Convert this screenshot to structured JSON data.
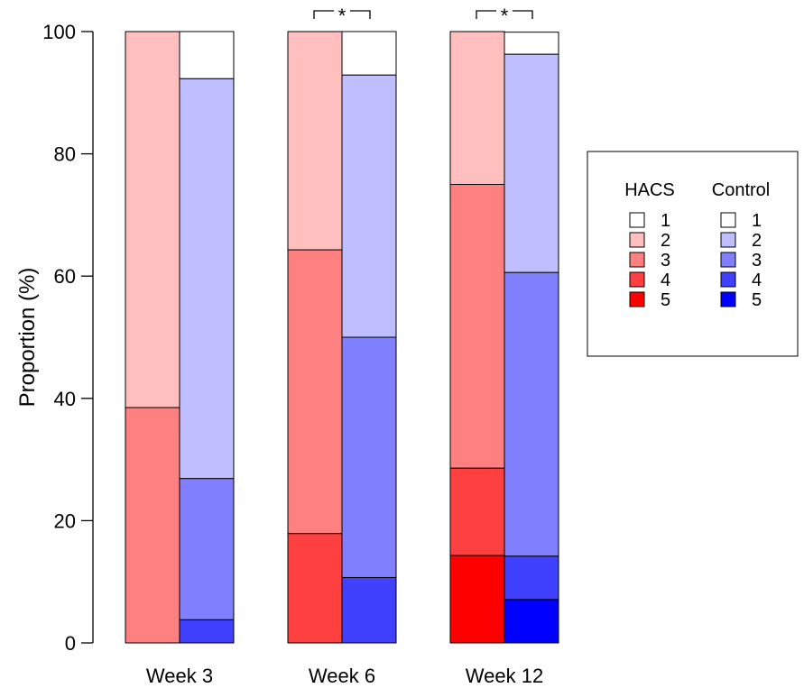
{
  "chart_data": {
    "type": "bar",
    "stacked": true,
    "title": "",
    "xlabel": "",
    "ylabel": "Proportion (%)",
    "ylim": [
      0,
      100
    ],
    "yticks": [
      0,
      20,
      40,
      60,
      80,
      100
    ],
    "categories": [
      "Week 3",
      "Week 6",
      "Week 12"
    ],
    "levels": [
      "1",
      "2",
      "3",
      "4",
      "5"
    ],
    "groups": [
      {
        "name": "HACS",
        "colors": [
          "#FFFFFF",
          "#FFBFBF",
          "#FF8080",
          "#FF4040",
          "#FF0000"
        ],
        "values": {
          "Week 3": {
            "1": 0,
            "2": 61.5,
            "3": 38.5,
            "4": 0,
            "5": 0
          },
          "Week 6": {
            "1": 0,
            "2": 35.7,
            "3": 46.4,
            "4": 17.9,
            "5": 0
          },
          "Week 12": {
            "1": 0,
            "2": 25.0,
            "3": 46.4,
            "4": 14.3,
            "5": 14.3
          }
        }
      },
      {
        "name": "Control",
        "colors": [
          "#FFFFFF",
          "#BFBFFF",
          "#8080FF",
          "#4040FF",
          "#0000FF"
        ],
        "values": {
          "Week 3": {
            "1": 7.7,
            "2": 65.4,
            "3": 23.1,
            "4": 3.8,
            "5": 0
          },
          "Week 6": {
            "1": 7.1,
            "2": 42.9,
            "3": 39.3,
            "4": 10.7,
            "5": 0
          },
          "Week 12": {
            "1": 3.6,
            "2": 35.7,
            "3": 46.4,
            "4": 7.1,
            "5": 7.1
          }
        }
      }
    ],
    "significance": [
      {
        "category": "Week 6",
        "label": "*"
      },
      {
        "category": "Week 12",
        "label": "*"
      }
    ],
    "legend": {
      "position": "right",
      "columns": [
        {
          "header": "HACS",
          "items": [
            "1",
            "2",
            "3",
            "4",
            "5"
          ]
        },
        {
          "header": "Control",
          "items": [
            "1",
            "2",
            "3",
            "4",
            "5"
          ]
        }
      ]
    }
  }
}
